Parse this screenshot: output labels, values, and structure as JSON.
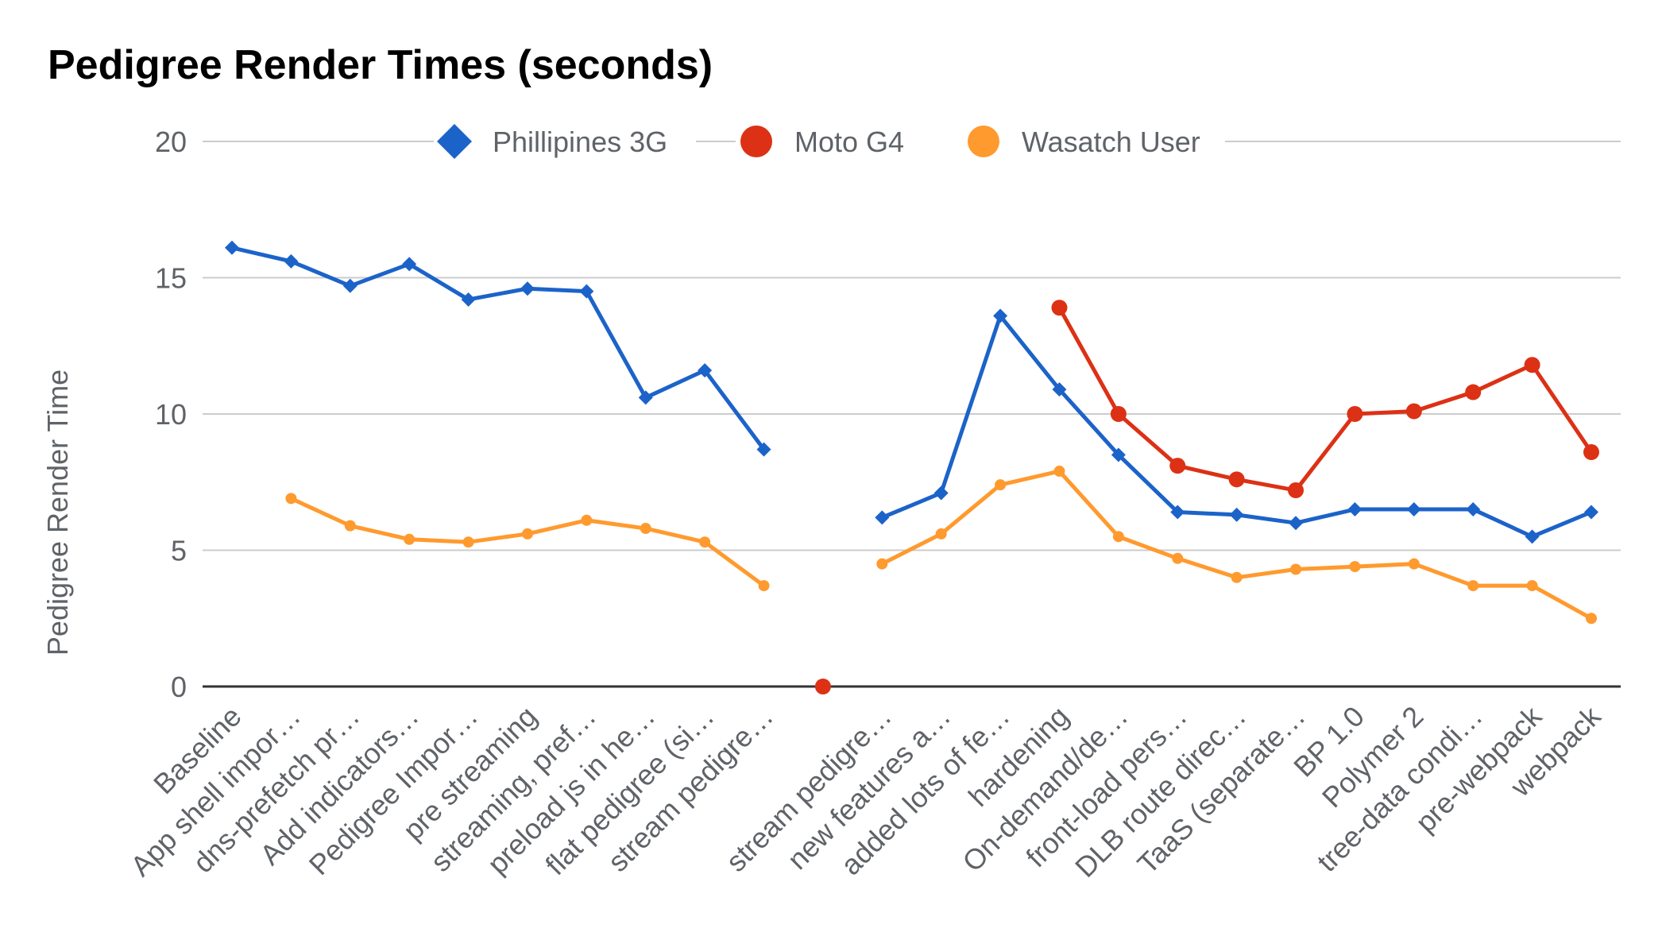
{
  "chart_data": {
    "type": "line",
    "title": "Pedigree Render Times (seconds)",
    "xlabel": "",
    "ylabel": "Pedigree Render Time",
    "ylim": [
      0,
      20
    ],
    "yticks": [
      "0",
      "5",
      "10",
      "15",
      "20"
    ],
    "grid": true,
    "legend_position": "top",
    "categories": [
      "Baseline",
      "App shell impor…",
      "dns-prefetch pr…",
      "Add indicators…",
      "Pedigree Impor…",
      "pre streaming",
      "streaming, pref…",
      "preload js in he…",
      "flat pedigree (si…",
      "stream pedigre…",
      "",
      "stream pedigre…",
      "new features a…",
      "added lots of fe…",
      "hardening",
      "On-demand/de…",
      "front-load pers…",
      "DLB route direc…",
      "TaaS (separate…",
      "BP 1.0",
      "Polymer 2",
      "tree-data condi…",
      "pre-webpack",
      "webpack"
    ],
    "series": [
      {
        "name": "Phillipines 3G",
        "color": "#1c63c9",
        "marker": "diamond",
        "values": [
          16.1,
          15.6,
          14.7,
          15.5,
          14.2,
          14.6,
          14.5,
          10.6,
          11.6,
          8.7,
          null,
          6.2,
          7.1,
          13.6,
          10.9,
          8.5,
          6.4,
          6.3,
          6.0,
          6.5,
          6.5,
          6.5,
          5.5,
          6.4
        ]
      },
      {
        "name": "Moto G4",
        "color": "#dc3115",
        "marker": "circle",
        "values": [
          null,
          null,
          null,
          null,
          null,
          null,
          null,
          null,
          null,
          null,
          0,
          null,
          null,
          null,
          13.9,
          10.0,
          8.1,
          7.6,
          7.2,
          10.0,
          10.1,
          10.8,
          11.8,
          8.6
        ]
      },
      {
        "name": "Wasatch User",
        "color": "#ff9a2e",
        "marker": "circle",
        "values": [
          null,
          6.9,
          5.9,
          5.4,
          5.3,
          5.6,
          6.1,
          5.8,
          5.3,
          3.7,
          null,
          4.5,
          5.6,
          7.4,
          7.9,
          5.5,
          4.7,
          4.0,
          4.3,
          4.4,
          4.5,
          3.7,
          3.7,
          2.5
        ]
      }
    ]
  }
}
